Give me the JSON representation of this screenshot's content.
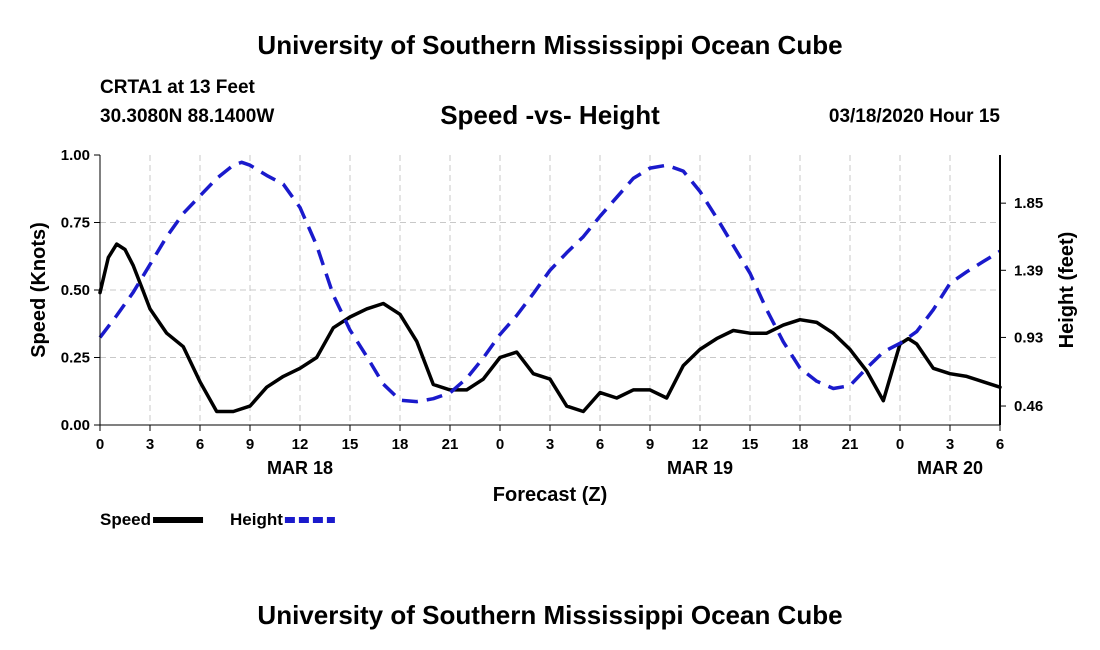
{
  "header": {
    "title": "University of Southern Mississippi Ocean Cube",
    "station": "CRTA1 at 13 Feet",
    "coords": "30.3080N 88.1400W",
    "subtitle": "Speed -vs- Height",
    "datestamp": "03/18/2020 Hour 15"
  },
  "footer": {
    "title": "University of Southern Mississippi Ocean Cube"
  },
  "chart_data": {
    "type": "line",
    "title": "Speed -vs- Height",
    "xlabel": "Forecast (Z)",
    "ylabel": "Speed (Knots)",
    "y2label": "Height (feet)",
    "xlim": [
      0,
      54
    ],
    "ylim": [
      0,
      1
    ],
    "y2lim": [
      0.33,
      2.18
    ],
    "grid": true,
    "x_ticks": [
      0,
      3,
      6,
      9,
      12,
      15,
      18,
      21,
      24,
      27,
      30,
      33,
      36,
      39,
      42,
      45,
      48,
      51,
      54
    ],
    "x_tick_labels": [
      "0",
      "3",
      "6",
      "9",
      "12",
      "15",
      "18",
      "21",
      "0",
      "3",
      "6",
      "9",
      "12",
      "15",
      "18",
      "21",
      "0",
      "3",
      "6"
    ],
    "y_ticks": [
      0,
      0.25,
      0.5,
      0.75,
      1.0
    ],
    "y_tick_labels": [
      "0.00",
      "0.25",
      "0.50",
      "0.75",
      "1.00"
    ],
    "y2_ticks": [
      0.46,
      0.93,
      1.39,
      1.85
    ],
    "y2_tick_labels": [
      "0.46",
      "0.93",
      "1.39",
      "1.85"
    ],
    "date_labels": [
      {
        "label": "MAR 18",
        "x": 12
      },
      {
        "label": "MAR 19",
        "x": 36
      },
      {
        "label": "MAR 20",
        "x": 51
      }
    ],
    "legend_position": "bottom-left",
    "series": [
      {
        "name": "Speed",
        "color": "#000000",
        "style": "solid",
        "axis": "left",
        "x": [
          0,
          0.5,
          1,
          1.5,
          2,
          2.5,
          3,
          4,
          5,
          6,
          7,
          8,
          9,
          10,
          11,
          12,
          13,
          14,
          15,
          16,
          17,
          18,
          19,
          20,
          21,
          22,
          23,
          24,
          25,
          26,
          27,
          28,
          29,
          30,
          31,
          32,
          33,
          34,
          35,
          36,
          37,
          38,
          39,
          40,
          41,
          42,
          43,
          44,
          45,
          46,
          47,
          48,
          48.5,
          49,
          50,
          51,
          52,
          53,
          54
        ],
        "values": [
          0.49,
          0.62,
          0.67,
          0.65,
          0.59,
          0.51,
          0.43,
          0.34,
          0.29,
          0.16,
          0.05,
          0.05,
          0.07,
          0.14,
          0.18,
          0.21,
          0.25,
          0.36,
          0.4,
          0.43,
          0.45,
          0.41,
          0.31,
          0.15,
          0.13,
          0.13,
          0.17,
          0.25,
          0.27,
          0.19,
          0.17,
          0.07,
          0.05,
          0.12,
          0.1,
          0.13,
          0.13,
          0.1,
          0.22,
          0.28,
          0.32,
          0.35,
          0.34,
          0.34,
          0.37,
          0.39,
          0.38,
          0.34,
          0.28,
          0.2,
          0.09,
          0.3,
          0.32,
          0.3,
          0.21,
          0.19,
          0.18,
          0.16,
          0.14
        ]
      },
      {
        "name": "Height",
        "color": "#1a1acc",
        "style": "dashed",
        "axis": "right",
        "x": [
          0,
          1,
          2,
          3,
          4,
          5,
          6,
          7,
          8,
          8.5,
          9,
          10,
          11,
          12,
          13,
          14,
          15,
          16,
          17,
          18,
          19,
          20,
          21,
          22,
          23,
          24,
          25,
          26,
          27,
          28,
          29,
          30,
          31,
          32,
          33,
          34,
          35,
          36,
          37,
          38,
          39,
          40,
          41,
          42,
          43,
          44,
          45,
          46,
          47,
          48,
          49,
          50,
          51,
          52,
          53,
          54
        ],
        "values": [
          0.93,
          1.08,
          1.24,
          1.43,
          1.62,
          1.78,
          1.9,
          2.02,
          2.11,
          2.13,
          2.11,
          2.04,
          1.98,
          1.82,
          1.56,
          1.22,
          0.98,
          0.8,
          0.61,
          0.5,
          0.49,
          0.51,
          0.55,
          0.65,
          0.79,
          0.95,
          1.08,
          1.23,
          1.39,
          1.51,
          1.62,
          1.76,
          1.89,
          2.02,
          2.09,
          2.11,
          2.07,
          1.93,
          1.75,
          1.56,
          1.37,
          1.12,
          0.9,
          0.72,
          0.63,
          0.58,
          0.6,
          0.72,
          0.83,
          0.89,
          0.97,
          1.12,
          1.3,
          1.38,
          1.45,
          1.52
        ]
      }
    ]
  }
}
